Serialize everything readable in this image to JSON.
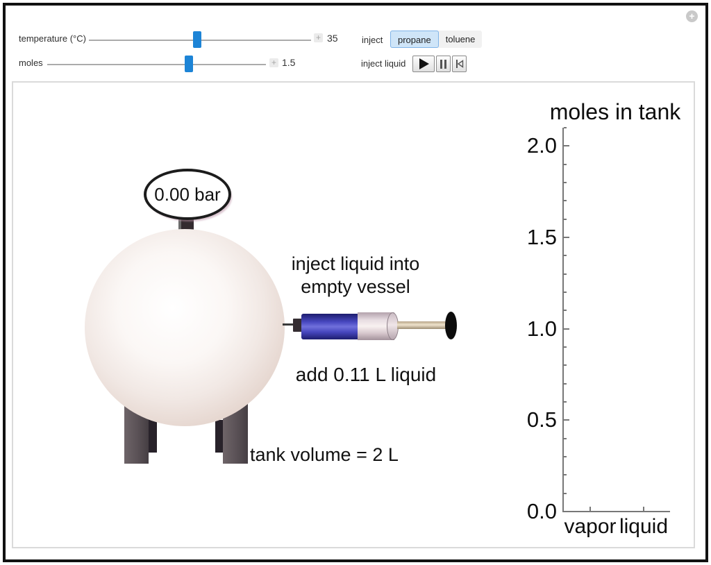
{
  "icons": {
    "corner_plus": "+",
    "stepper_plus": "+"
  },
  "controls": {
    "temperature": {
      "label": "temperature (°C)",
      "value": "35"
    },
    "moles": {
      "label": "moles",
      "value": "1.5"
    },
    "inject": {
      "label": "inject",
      "options": [
        {
          "label": "propane",
          "selected": true
        },
        {
          "label": "toluene",
          "selected": false
        }
      ]
    },
    "inject_liquid": {
      "label": "inject liquid"
    }
  },
  "diagram": {
    "gauge_reading": "0.00 bar",
    "caption_line1": "inject liquid into",
    "caption_line2": "empty vessel",
    "add_label": "add 0.11 L liquid",
    "tank_volume_label": "tank volume = 2 L"
  },
  "chart_data": {
    "type": "bar",
    "title": "moles in tank",
    "categories": [
      "vapor",
      "liquid"
    ],
    "values": [
      0,
      0
    ],
    "xlabel": "",
    "ylabel": "",
    "ylim": [
      0,
      2.1
    ],
    "ytick_major": 0.5,
    "ytick_minor": 0.1,
    "ytick_labels": [
      "0.0",
      "0.5",
      "1.0",
      "1.5",
      "2.0"
    ],
    "grid": false,
    "legend": false
  },
  "colors": {
    "slider_thumb": "#1d84d6",
    "selected_option_bg": "#cfe5f8",
    "selected_option_border": "#7eb3e8",
    "syringe_liquid": "#4848c0",
    "axis": "#777777"
  }
}
